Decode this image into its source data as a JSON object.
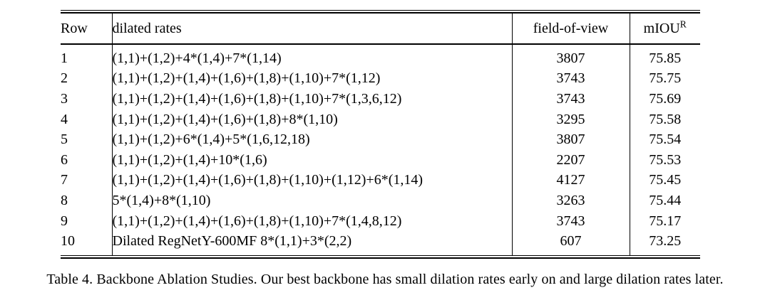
{
  "colors": {
    "background": "#ffffff",
    "text": "#000000",
    "rule": "#000000"
  },
  "table": {
    "columns": {
      "row": "Row",
      "dilated_rates": "dilated rates",
      "field_of_view": "field-of-view",
      "miou_base": "mIOU",
      "miou_sup": "R"
    },
    "rows": [
      {
        "row": "1",
        "dilated_rates": "(1,1)+(1,2)+4*(1,4)+7*(1,14)",
        "field_of_view": "3807",
        "miou": "75.85"
      },
      {
        "row": "2",
        "dilated_rates": "(1,1)+(1,2)+(1,4)+(1,6)+(1,8)+(1,10)+7*(1,12)",
        "field_of_view": "3743",
        "miou": "75.75"
      },
      {
        "row": "3",
        "dilated_rates": "(1,1)+(1,2)+(1,4)+(1,6)+(1,8)+(1,10)+7*(1,3,6,12)",
        "field_of_view": "3743",
        "miou": "75.69"
      },
      {
        "row": "4",
        "dilated_rates": "(1,1)+(1,2)+(1,4)+(1,6)+(1,8)+8*(1,10)",
        "field_of_view": "3295",
        "miou": "75.58"
      },
      {
        "row": "5",
        "dilated_rates": "(1,1)+(1,2)+6*(1,4)+5*(1,6,12,18)",
        "field_of_view": "3807",
        "miou": "75.54"
      },
      {
        "row": "6",
        "dilated_rates": "(1,1)+(1,2)+(1,4)+10*(1,6)",
        "field_of_view": "2207",
        "miou": "75.53"
      },
      {
        "row": "7",
        "dilated_rates": "(1,1)+(1,2)+(1,4)+(1,6)+(1,8)+(1,10)+(1,12)+6*(1,14)",
        "field_of_view": "4127",
        "miou": "75.45"
      },
      {
        "row": "8",
        "dilated_rates": "5*(1,4)+8*(1,10)",
        "field_of_view": "3263",
        "miou": "75.44"
      },
      {
        "row": "9",
        "dilated_rates": "(1,1)+(1,2)+(1,4)+(1,6)+(1,8)+(1,10)+7*(1,4,8,12)",
        "field_of_view": "3743",
        "miou": "75.17"
      },
      {
        "row": "10",
        "dilated_rates": "Dilated RegNetY-600MF 8*(1,1)+3*(2,2)",
        "field_of_view": "607",
        "miou": "73.25"
      }
    ]
  },
  "caption": {
    "text": "Table 4. Backbone Ablation Studies. Our best backbone has small dilation rates early on and large dilation rates later."
  }
}
